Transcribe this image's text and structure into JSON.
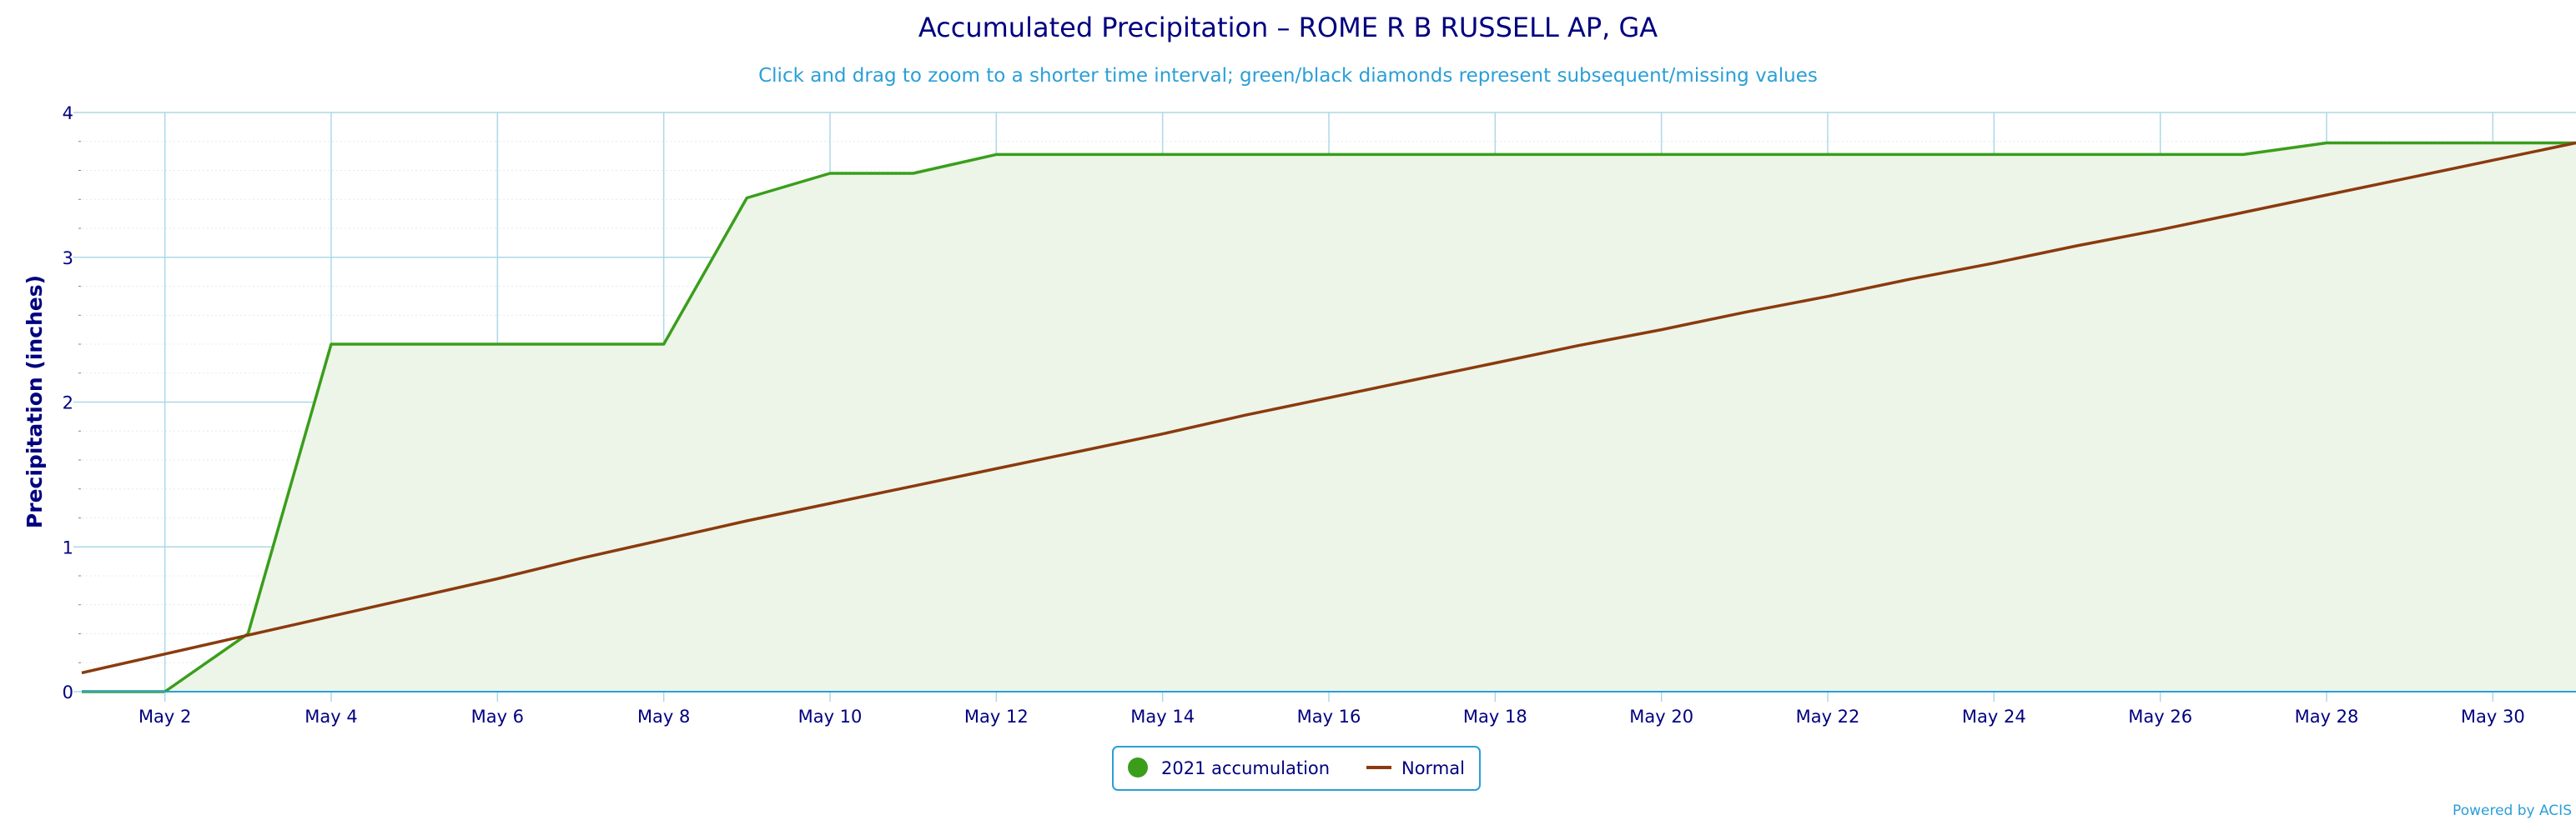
{
  "chart_data": {
    "type": "line",
    "title": "Accumulated Precipitation – ROME R B RUSSELL AP, GA",
    "subtitle": "Click and drag to zoom to a shorter time interval; green/black diamonds represent subsequent/missing values",
    "ylabel": "Precipitation (inches)",
    "xlabel": "",
    "ylim": [
      0,
      4
    ],
    "xlim": [
      1,
      31
    ],
    "y_ticks": [
      0,
      1,
      2,
      3,
      4
    ],
    "x_ticks": [
      {
        "x": 2,
        "label": "May 2"
      },
      {
        "x": 4,
        "label": "May 4"
      },
      {
        "x": 6,
        "label": "May 6"
      },
      {
        "x": 8,
        "label": "May 8"
      },
      {
        "x": 10,
        "label": "May 10"
      },
      {
        "x": 12,
        "label": "May 12"
      },
      {
        "x": 14,
        "label": "May 14"
      },
      {
        "x": 16,
        "label": "May 16"
      },
      {
        "x": 18,
        "label": "May 18"
      },
      {
        "x": 20,
        "label": "May 20"
      },
      {
        "x": 22,
        "label": "May 22"
      },
      {
        "x": 24,
        "label": "May 24"
      },
      {
        "x": 26,
        "label": "May 26"
      },
      {
        "x": 28,
        "label": "May 28"
      },
      {
        "x": 30,
        "label": "May 30"
      }
    ],
    "grid": true,
    "legend_position": "bottom-center",
    "series": [
      {
        "name": "2021 accumulation",
        "style": "area",
        "color": "#3a9e1b",
        "fill": "#edf5e8",
        "x": [
          1,
          2,
          3,
          4,
          5,
          6,
          7,
          8,
          9,
          10,
          11,
          12,
          13,
          14,
          15,
          16,
          17,
          18,
          19,
          20,
          21,
          22,
          23,
          24,
          25,
          26,
          27,
          28,
          29,
          30,
          31
        ],
        "values": [
          0,
          0,
          0.4,
          2.4,
          2.4,
          2.4,
          2.4,
          2.4,
          3.41,
          3.58,
          3.58,
          3.71,
          3.71,
          3.71,
          3.71,
          3.71,
          3.71,
          3.71,
          3.71,
          3.71,
          3.71,
          3.71,
          3.71,
          3.71,
          3.71,
          3.71,
          3.71,
          3.79,
          3.79,
          3.79,
          3.79
        ]
      },
      {
        "name": "Normal",
        "style": "line",
        "color": "#8b3a0e",
        "x": [
          1,
          2,
          3,
          4,
          5,
          6,
          7,
          8,
          9,
          10,
          11,
          12,
          13,
          14,
          15,
          16,
          17,
          18,
          19,
          20,
          21,
          22,
          23,
          24,
          25,
          26,
          27,
          28,
          29,
          30,
          31
        ],
        "values": [
          0.13,
          0.26,
          0.39,
          0.52,
          0.65,
          0.78,
          0.92,
          1.05,
          1.18,
          1.3,
          1.42,
          1.54,
          1.66,
          1.78,
          1.91,
          2.03,
          2.15,
          2.27,
          2.39,
          2.5,
          2.62,
          2.73,
          2.85,
          2.96,
          3.08,
          3.19,
          3.31,
          3.43,
          3.55,
          3.67,
          3.79
        ]
      }
    ]
  },
  "credits": "Powered by ACIS",
  "colors": {
    "grid": "#add8e6",
    "axis_line": "#2a9fd6",
    "title": "#000080",
    "subtitle": "#2a9fd6",
    "legend_border": "#2a9fd6"
  }
}
